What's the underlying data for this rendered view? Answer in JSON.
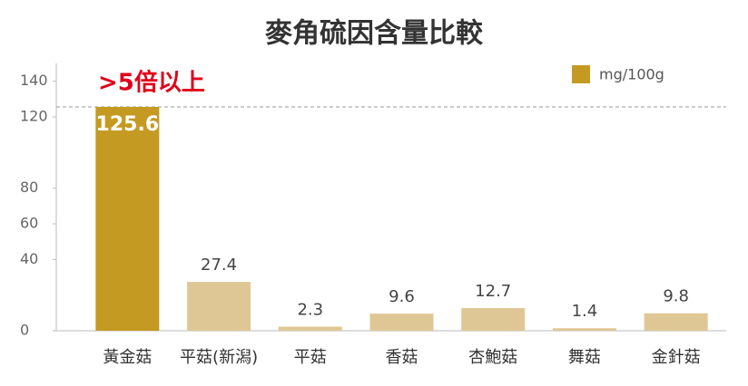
{
  "chart_data": {
    "type": "bar",
    "title": "麥角硫因含量比較",
    "annotation": ">5倍以上",
    "legend": "mg/100g",
    "categories": [
      "黃金菇",
      "平菇(新潟)",
      "平菇",
      "香菇",
      "杏鮑菇",
      "舞菇",
      "金針菇"
    ],
    "values": [
      125.6,
      27.4,
      2.3,
      9.6,
      12.7,
      1.4,
      9.8
    ],
    "colors": [
      "#c49a22",
      "#dfc795",
      "#dfc795",
      "#dfc795",
      "#dfc795",
      "#dfc795",
      "#dfc795"
    ],
    "ylim": [
      0,
      150
    ],
    "yticks": [
      0,
      40,
      60,
      80,
      120,
      140
    ],
    "grid": false
  }
}
